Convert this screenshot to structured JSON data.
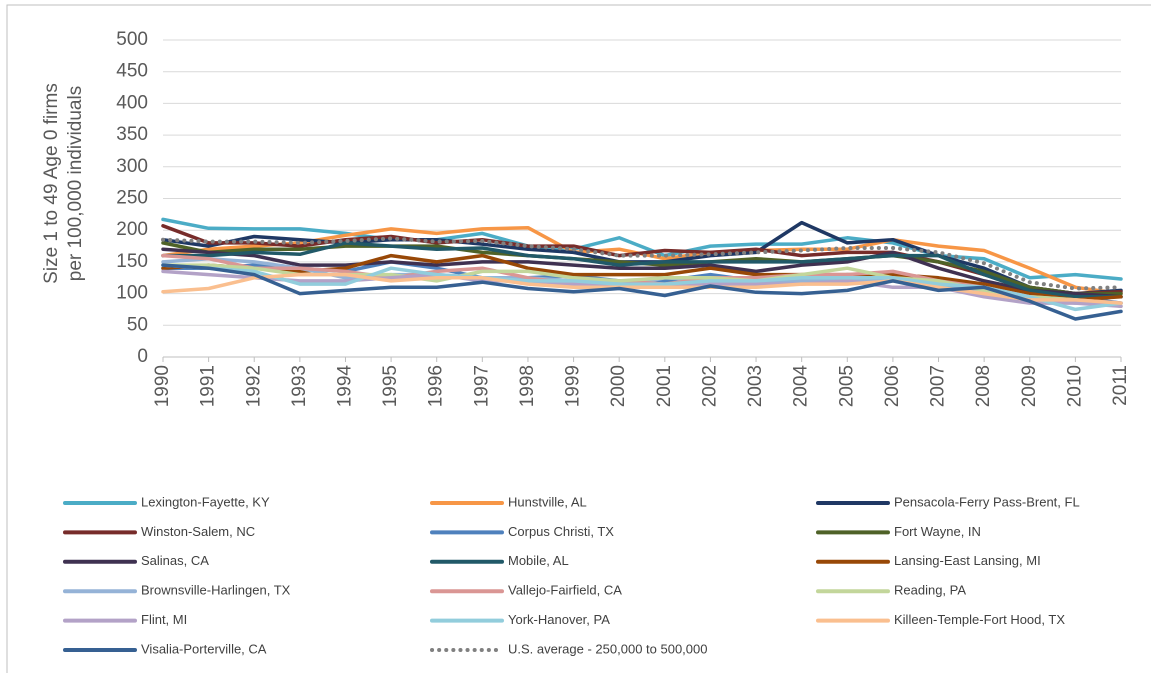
{
  "chart_data": {
    "type": "line",
    "ylabel": [
      "Size 1 to 49 Age 0 firms",
      "per 100,000 individuals"
    ],
    "x": [
      "1990",
      "1991",
      "1992",
      "1993",
      "1994",
      "1995",
      "1996",
      "1997",
      "1998",
      "1999",
      "2000",
      "2001",
      "2002",
      "2003",
      "2004",
      "2005",
      "2006",
      "2007",
      "2008",
      "2009",
      "2010",
      "2011"
    ],
    "ylim": [
      0,
      500
    ],
    "yticks": [
      0,
      50,
      100,
      150,
      200,
      250,
      300,
      350,
      400,
      450,
      500
    ],
    "grid": true,
    "series": [
      {
        "name": "Lexington-Fayette, KY",
        "color": "#4bacc6",
        "values": [
          217,
          203,
          202,
          202,
          195,
          185,
          185,
          195,
          175,
          170,
          188,
          160,
          175,
          178,
          178,
          188,
          180,
          160,
          155,
          125,
          130,
          123
        ]
      },
      {
        "name": "Hunstville, AL",
        "color": "#f79646",
        "values": [
          160,
          170,
          175,
          180,
          192,
          202,
          195,
          202,
          204,
          165,
          170,
          155,
          165,
          168,
          170,
          170,
          185,
          175,
          168,
          140,
          110,
          100
        ]
      },
      {
        "name": "Pensacola-Ferry Pass-Brent, FL",
        "color": "#1f3864",
        "values": [
          185,
          175,
          190,
          185,
          180,
          185,
          185,
          178,
          170,
          165,
          150,
          150,
          160,
          165,
          212,
          180,
          185,
          160,
          140,
          110,
          100,
          105
        ]
      },
      {
        "name": "Winston-Salem, NC",
        "color": "#772c2a",
        "values": [
          207,
          180,
          180,
          175,
          185,
          190,
          180,
          185,
          175,
          175,
          160,
          168,
          165,
          170,
          160,
          165,
          165,
          150,
          130,
          110,
          100,
          103
        ]
      },
      {
        "name": "Corpus Christi, TX",
        "color": "#4f81bd",
        "values": [
          140,
          140,
          145,
          140,
          135,
          150,
          140,
          125,
          125,
          128,
          120,
          120,
          130,
          120,
          125,
          130,
          125,
          120,
          110,
          100,
          95,
          85
        ]
      },
      {
        "name": "Fort Wayne, IN",
        "color": "#4f6228",
        "values": [
          180,
          165,
          170,
          170,
          175,
          175,
          175,
          165,
          160,
          155,
          150,
          145,
          150,
          155,
          150,
          155,
          160,
          150,
          135,
          110,
          100,
          100
        ]
      },
      {
        "name": "Salinas, CA",
        "color": "#3f3151",
        "values": [
          170,
          165,
          160,
          145,
          145,
          150,
          145,
          150,
          150,
          145,
          140,
          140,
          145,
          135,
          145,
          150,
          165,
          140,
          120,
          105,
          100,
          95
        ]
      },
      {
        "name": "Mobile, AL",
        "color": "#215968",
        "values": [
          160,
          160,
          165,
          162,
          180,
          175,
          170,
          172,
          160,
          155,
          145,
          150,
          150,
          150,
          150,
          155,
          160,
          160,
          130,
          105,
          95,
          95
        ]
      },
      {
        "name": "Lansing-East Lansing, MI",
        "color": "#984807",
        "values": [
          140,
          145,
          140,
          135,
          140,
          160,
          150,
          160,
          140,
          130,
          130,
          130,
          140,
          130,
          130,
          130,
          130,
          125,
          115,
          100,
          90,
          95
        ]
      },
      {
        "name": "Brownsville-Harlingen, TX",
        "color": "#95b3d7",
        "values": [
          150,
          155,
          150,
          140,
          125,
          130,
          130,
          125,
          125,
          120,
          110,
          125,
          120,
          120,
          120,
          120,
          125,
          115,
          105,
          95,
          85,
          85
        ]
      },
      {
        "name": "Vallejo-Fairfield, CA",
        "color": "#da9694",
        "values": [
          160,
          155,
          140,
          140,
          135,
          125,
          135,
          140,
          125,
          115,
          120,
          115,
          125,
          125,
          130,
          130,
          135,
          120,
          110,
          95,
          90,
          85
        ]
      },
      {
        "name": "Reading, PA",
        "color": "#c3d69b",
        "values": [
          145,
          145,
          140,
          130,
          130,
          130,
          120,
          135,
          135,
          125,
          120,
          125,
          125,
          120,
          130,
          140,
          125,
          120,
          105,
          95,
          90,
          80
        ]
      },
      {
        "name": "Flint, MI",
        "color": "#b3a2c7",
        "values": [
          135,
          130,
          125,
          120,
          120,
          125,
          130,
          120,
          120,
          115,
          115,
          110,
          115,
          115,
          115,
          120,
          110,
          110,
          95,
          85,
          85,
          80
        ]
      },
      {
        "name": "York-Hanover, PA",
        "color": "#92cddc",
        "values": [
          145,
          140,
          135,
          115,
          115,
          140,
          130,
          125,
          120,
          120,
          115,
          115,
          120,
          120,
          125,
          125,
          125,
          115,
          110,
          95,
          75,
          85
        ]
      },
      {
        "name": "Killeen-Temple-Fort Hood, TX",
        "color": "#fabf8f",
        "values": [
          103,
          108,
          125,
          130,
          130,
          120,
          125,
          125,
          115,
          110,
          110,
          110,
          110,
          110,
          115,
          115,
          120,
          110,
          100,
          90,
          90,
          85
        ]
      },
      {
        "name": "Visalia-Porterville, CA",
        "color": "#366092",
        "values": [
          145,
          140,
          130,
          100,
          105,
          110,
          110,
          118,
          108,
          103,
          108,
          97,
          112,
          102,
          100,
          105,
          120,
          105,
          110,
          88,
          60,
          72
        ]
      },
      {
        "name": "U.S. average - 250,000 to 500,000",
        "color": "#808080",
        "style": "dotted",
        "values": [
          185,
          182,
          182,
          180,
          183,
          187,
          182,
          183,
          175,
          170,
          160,
          160,
          162,
          165,
          168,
          172,
          172,
          165,
          148,
          118,
          108,
          110
        ]
      }
    ]
  }
}
